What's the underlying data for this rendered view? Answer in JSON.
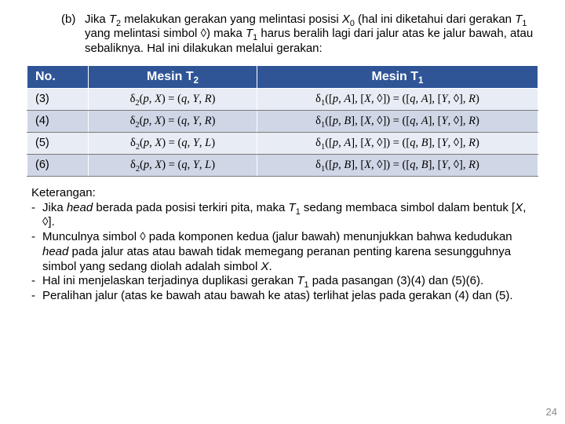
{
  "item_b": {
    "tag": "(b)",
    "text_html": "Jika <span class='ital'>T</span><sub>2</sub> melakukan gerakan yang melintasi posisi <span class='ital'>X</span><sub>0</sub> (hal ini diketahui dari gerakan <span class='ital'>T</span><sub>1</sub> yang melintasi simbol <span class='dia'>◊</span>) maka <span class='ital'>T</span><sub>1</sub> harus beralih lagi dari jalur atas ke jalur bawah, atau sebaliknya. Hal ini dilakukan melalui gerakan:"
  },
  "table": {
    "headers": {
      "no": "No.",
      "m2_html": "Mesin T<sub>2</sub>",
      "m1_html": "Mesin T<sub>1</sub>"
    },
    "rows": [
      {
        "no": "(3)",
        "m2_html": "<span class='d'>δ</span><sub>2</sub>(<span class='ital'>p</span>, <span class='ital'>X</span>) = (<span class='ital'>q</span>, <span class='ital'>Y</span>, <span class='ital'>R</span>)",
        "m1_html": "<span class='d'>δ</span><sub>1</sub>([<span class='ital'>p</span>, <span class='ital'>A</span>], [<span class='ital'>X</span>, <span class='dia'>◊</span>]) = ([<span class='ital'>q</span>, <span class='ital'>A</span>], [<span class='ital'>Y</span>, <span class='dia'>◊</span>], <span class='ital'>R</span>)"
      },
      {
        "no": "(4)",
        "m2_html": "<span class='d'>δ</span><sub>2</sub>(<span class='ital'>p</span>, <span class='ital'>X</span>) = (<span class='ital'>q</span>, <span class='ital'>Y</span>, <span class='ital'>R</span>)",
        "m1_html": "<span class='d'>δ</span><sub>1</sub>([<span class='ital'>p</span>, <span class='ital'>B</span>], [<span class='ital'>X</span>, <span class='dia'>◊</span>]) = ([<span class='ital'>q</span>, <span class='ital'>A</span>], [<span class='ital'>Y</span>, <span class='dia'>◊</span>], <span class='ital'>R</span>)"
      },
      {
        "no": "(5)",
        "m2_html": "<span class='d'>δ</span><sub>2</sub>(<span class='ital'>p</span>, <span class='ital'>X</span>) = (<span class='ital'>q</span>, <span class='ital'>Y</span>, <span class='ital'>L</span>)",
        "m1_html": "<span class='d'>δ</span><sub>1</sub>([<span class='ital'>p</span>, <span class='ital'>A</span>], [<span class='ital'>X</span>, <span class='dia'>◊</span>]) = ([<span class='ital'>q</span>, <span class='ital'>B</span>], [<span class='ital'>Y</span>, <span class='dia'>◊</span>], <span class='ital'>R</span>)"
      },
      {
        "no": "(6)",
        "m2_html": "<span class='d'>δ</span><sub>2</sub>(<span class='ital'>p</span>, <span class='ital'>X</span>) = (<span class='ital'>q</span>, <span class='ital'>Y</span>, <span class='ital'>L</span>)",
        "m1_html": "<span class='d'>δ</span><sub>1</sub>([<span class='ital'>p</span>, <span class='ital'>B</span>], [<span class='ital'>X</span>, <span class='dia'>◊</span>]) = ([<span class='ital'>q</span>, <span class='ital'>B</span>], [<span class='ital'>Y</span>, <span class='dia'>◊</span>], <span class='ital'>R</span>)"
      }
    ],
    "header_bg": "#2f5597",
    "header_fg": "#ffffff",
    "row_odd_bg": "#e8ecf4",
    "row_even_bg": "#cfd6e6"
  },
  "keterangan": {
    "title": "Keterangan:",
    "bullets_html": [
      "Jika <span class='ital'>head</span> berada pada posisi terkiri pita, maka <span class='ital'>T</span><sub>1</sub> sedang membaca simbol dalam bentuk [<span class='ital'>X</span>, <span class='dia'>◊</span>].",
      "Munculnya simbol <span class='dia'>◊</span> pada komponen kedua (jalur bawah) menunjukkan bahwa kedudukan <span class='ital'>head</span> pada jalur atas atau bawah tidak memegang peranan penting karena sesungguhnya simbol yang sedang diolah adalah simbol <span class='ital'>X</span>.",
      "Hal ini menjelaskan terjadinya duplikasi gerakan <span class='ital'>T</span><sub>1</sub> pada pasangan (3)(4) dan (5)(6).",
      "Peralihan jalur (atas ke bawah atau bawah ke atas) terlihat jelas pada gerakan (4) dan (5)."
    ]
  },
  "page_number": "24"
}
